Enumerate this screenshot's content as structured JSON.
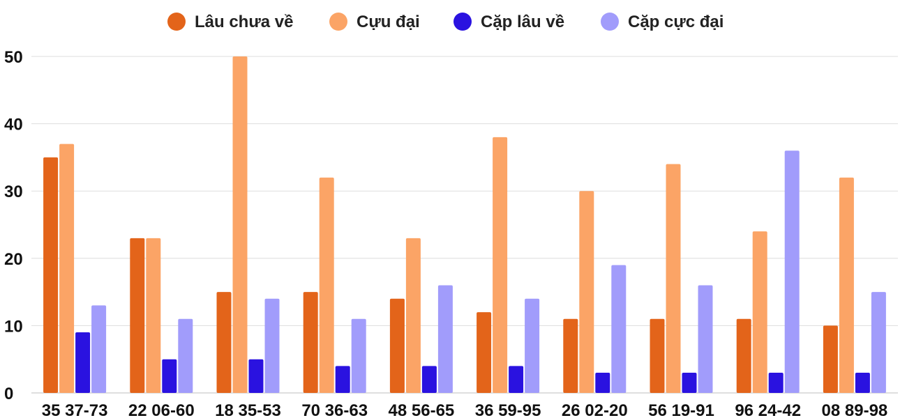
{
  "chart_data": {
    "type": "bar",
    "title": "",
    "xlabel": "",
    "ylabel": "",
    "ylim": [
      0,
      50
    ],
    "yticks": [
      0,
      10,
      20,
      30,
      40,
      50
    ],
    "grid": true,
    "legend_position": "top-center",
    "categories": [
      "35 37-73",
      "22 06-60",
      "18 35-53",
      "70 36-63",
      "48 56-65",
      "36 59-95",
      "26 02-20",
      "56 19-91",
      "96 24-42",
      "08 89-98"
    ],
    "series": [
      {
        "name": "Lâu chưa về",
        "color": "#e3641a",
        "values": [
          35,
          23,
          15,
          15,
          14,
          12,
          11,
          11,
          11,
          10
        ]
      },
      {
        "name": "Cựu đại",
        "color": "#fba466",
        "values": [
          37,
          23,
          50,
          32,
          23,
          38,
          30,
          34,
          24,
          32
        ]
      },
      {
        "name": "Cặp lâu về",
        "color": "#2a12e0",
        "values": [
          9,
          5,
          5,
          4,
          4,
          4,
          3,
          3,
          3,
          3
        ]
      },
      {
        "name": "Cặp cực đại",
        "color": "#a19cfb",
        "values": [
          13,
          11,
          14,
          11,
          16,
          14,
          19,
          16,
          36,
          15
        ]
      }
    ]
  }
}
